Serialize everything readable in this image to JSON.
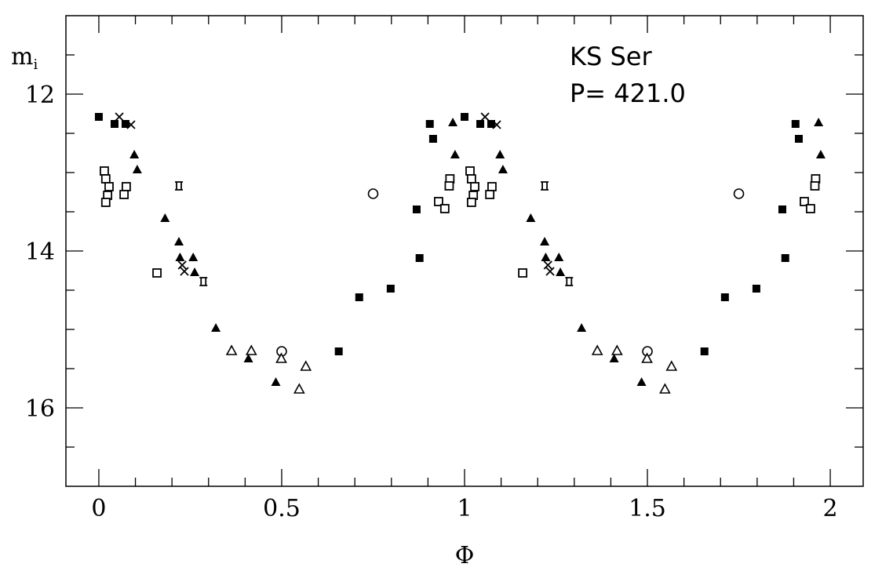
{
  "chart_data": {
    "type": "scatter",
    "title": "",
    "annotations": [
      "KS Ser",
      "P= 421.0"
    ],
    "xlabel": "Φ",
    "ylabel": "m",
    "ylabel_sub": "i",
    "xlim": [
      -0.09,
      2.09
    ],
    "ylim": [
      17,
      11
    ],
    "y_inverted": true,
    "x_ticks": [
      "0",
      "0.5",
      "1",
      "1.5",
      "2"
    ],
    "x_tick_values": [
      0,
      0.5,
      1,
      1.5,
      2
    ],
    "y_ticks": [
      "12",
      "14",
      "16"
    ],
    "y_tick_values": [
      12,
      14,
      16
    ],
    "grid": false,
    "note": "phased light curve; each point plotted at phase and phase+1",
    "series": [
      {
        "name": "filled-square",
        "points": [
          [
            0.0,
            12.29
          ],
          [
            0.043,
            12.38
          ],
          [
            0.073,
            12.38
          ],
          [
            0.656,
            15.28
          ],
          [
            0.712,
            14.59
          ],
          [
            0.798,
            14.48
          ],
          [
            0.869,
            13.47
          ],
          [
            0.877,
            14.09
          ],
          [
            0.905,
            12.38
          ],
          [
            0.914,
            12.57
          ]
        ]
      },
      {
        "name": "cross",
        "points": [
          [
            0.056,
            12.29
          ],
          [
            0.088,
            12.39
          ],
          [
            0.228,
            14.18
          ],
          [
            0.234,
            14.26
          ]
        ]
      },
      {
        "name": "crossed-square",
        "points": [
          [
            0.219,
            13.17
          ],
          [
            0.286,
            14.39
          ]
        ]
      },
      {
        "name": "filled-triangle",
        "points": [
          [
            0.097,
            12.77
          ],
          [
            0.105,
            12.96
          ],
          [
            0.181,
            13.58
          ],
          [
            0.219,
            13.88
          ],
          [
            0.222,
            14.08
          ],
          [
            0.258,
            14.08
          ],
          [
            0.262,
            14.27
          ],
          [
            0.32,
            14.98
          ],
          [
            0.409,
            15.37
          ],
          [
            0.484,
            15.67
          ],
          [
            0.968,
            12.36
          ],
          [
            0.974,
            12.77
          ]
        ]
      },
      {
        "name": "open-square",
        "points": [
          [
            0.015,
            12.98
          ],
          [
            0.019,
            13.08
          ],
          [
            0.028,
            13.18
          ],
          [
            0.024,
            13.29
          ],
          [
            0.019,
            13.38
          ],
          [
            0.075,
            13.18
          ],
          [
            0.069,
            13.28
          ],
          [
            0.159,
            14.28
          ],
          [
            0.929,
            13.37
          ],
          [
            0.946,
            13.46
          ],
          [
            0.96,
            13.08
          ],
          [
            0.958,
            13.17
          ]
        ]
      },
      {
        "name": "open-circle",
        "points": [
          [
            0.75,
            13.27
          ],
          [
            0.5,
            15.28
          ]
        ]
      },
      {
        "name": "open-triangle",
        "points": [
          [
            0.363,
            15.27
          ],
          [
            0.417,
            15.27
          ],
          [
            0.499,
            15.37
          ],
          [
            0.566,
            15.47
          ],
          [
            0.548,
            15.76
          ]
        ]
      }
    ]
  }
}
